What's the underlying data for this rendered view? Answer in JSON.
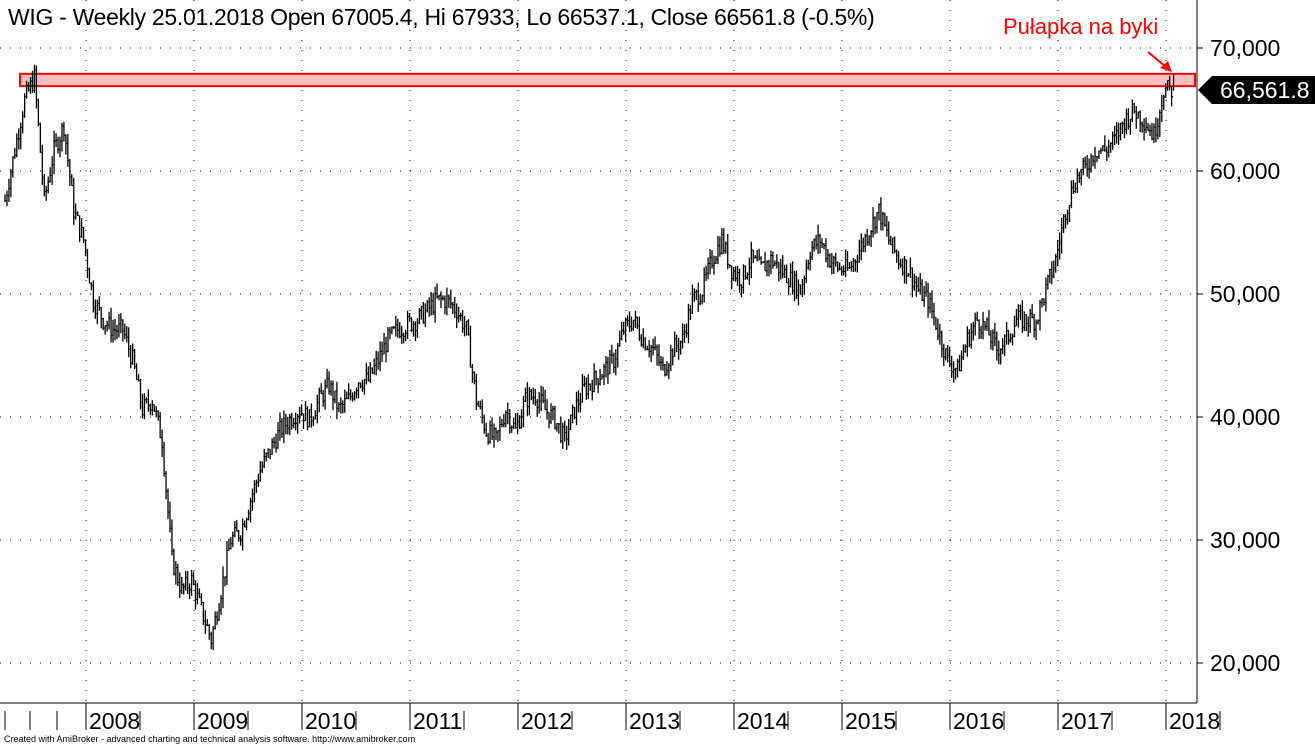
{
  "chart_data": {
    "type": "ohlc",
    "title": "WIG - Weekly 25.01.2018 Open 67005.4, Hi 67933, Lo 66537.1, Close 66561.8 (-0.5%)",
    "annotation": "Pułapka na byki",
    "last_price_label": "66,561.8",
    "footer": "Created with AmiBroker - advanced charting and technical analysis software. http://www.amibroker.com",
    "x_start": 2007.25,
    "x_end": 2018.07,
    "x_ticks": [
      "2008",
      "2009",
      "2010",
      "2011",
      "2012",
      "2013",
      "2014",
      "2015",
      "2016",
      "2017",
      "2018"
    ],
    "y_ticks": [
      "20,000",
      "30,000",
      "40,000",
      "50,000",
      "60,000",
      "70,000"
    ],
    "y_tick_values": [
      20000,
      30000,
      40000,
      50000,
      60000,
      70000
    ],
    "ylim": [
      17000,
      73500
    ],
    "grid": true,
    "highlight_zone": [
      66900,
      67900
    ],
    "close_values": [
      57600,
      61700,
      65800,
      67600,
      57600,
      61700,
      63700,
      56800,
      54400,
      49500,
      47900,
      47100,
      47100,
      44600,
      40600,
      41400,
      38100,
      28400,
      25900,
      26700,
      24300,
      21900,
      25900,
      30000,
      30700,
      33300,
      35700,
      37300,
      38900,
      39800,
      40600,
      39800,
      41400,
      42600,
      40600,
      41400,
      43000,
      43000,
      44600,
      46300,
      47100,
      47500,
      47900,
      48700,
      49500,
      49500,
      48700,
      47100,
      41400,
      38900,
      38100,
      40600,
      38900,
      41400,
      41800,
      40600,
      39800,
      38100,
      40600,
      42300,
      43000,
      43800,
      44600,
      47100,
      47900,
      46300,
      45500,
      43800,
      45500,
      46300,
      49500,
      50300,
      52800,
      54400,
      52000,
      51200,
      52800,
      52000,
      52800,
      52000,
      51200,
      50300,
      53600,
      54400,
      52800,
      52000,
      52000,
      53600,
      55200,
      56800,
      54400,
      52800,
      52000,
      50300,
      49500,
      47100,
      44600,
      43800,
      46300,
      47900,
      47100,
      45500,
      46300,
      47900,
      47900,
      47900,
      50300,
      52800,
      56800,
      59300,
      60200,
      61700,
      61700,
      62500,
      64100,
      64900,
      64100,
      62900,
      66600,
      66562
    ],
    "colors": {
      "bars": "#000000",
      "highlight_fill": "#ffc0c0",
      "highlight_stroke": "#ff0000",
      "annotation": "#ff0000",
      "tag_bg": "#000000"
    }
  }
}
